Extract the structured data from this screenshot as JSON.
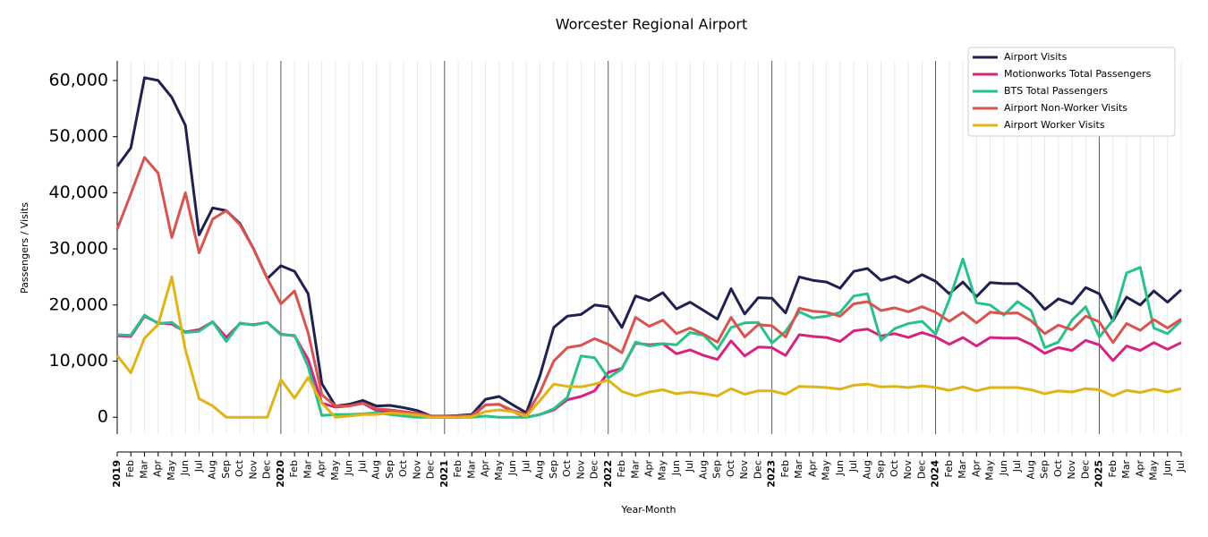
{
  "chart_data": {
    "type": "line",
    "title": "Worcester Regional Airport",
    "x_label": "Year-Month",
    "y_label": "Passengers / Visits",
    "categories": [
      "2019",
      "Feb",
      "Mar",
      "Apr",
      "May",
      "Jun",
      "Jul",
      "Aug",
      "Sep",
      "Oct",
      "Nov",
      "Dec",
      "2020",
      "Feb",
      "Mar",
      "Apr",
      "May",
      "Jun",
      "Jul",
      "Aug",
      "Sep",
      "Oct",
      "Nov",
      "Dec",
      "2021",
      "Feb",
      "Mar",
      "Apr",
      "May",
      "Jun",
      "Jul",
      "Aug",
      "Sep",
      "Oct",
      "Nov",
      "Dec",
      "2022",
      "Feb",
      "Mar",
      "Apr",
      "May",
      "Jun",
      "Jul",
      "Aug",
      "Sep",
      "Oct",
      "Nov",
      "Dec",
      "2023",
      "Feb",
      "Mar",
      "Apr",
      "May",
      "Jun",
      "Jul",
      "Aug",
      "Sep",
      "Oct",
      "Nov",
      "Dec",
      "2024",
      "Feb",
      "Mar",
      "Apr",
      "May",
      "Jun",
      "Jul",
      "Aug",
      "Sep",
      "Oct",
      "Nov",
      "Dec",
      "2025",
      "Feb",
      "Mar",
      "Apr",
      "May",
      "Jun",
      "Jul"
    ],
    "series": [
      {
        "name": "Airport Visits",
        "color": "#1f2151",
        "values": [
          44700,
          48000,
          60500,
          60000,
          57000,
          52000,
          32500,
          37300,
          36800,
          34500,
          30000,
          24700,
          27000,
          26000,
          22000,
          6000,
          2000,
          2300,
          3000,
          2000,
          2100,
          1700,
          1200,
          200,
          200,
          300,
          500,
          3200,
          3700,
          2200,
          800,
          7500,
          16000,
          18000,
          18300,
          20000,
          19700,
          16000,
          21600,
          20800,
          22200,
          19300,
          20500,
          19000,
          17500,
          22900,
          18400,
          21300,
          21200,
          18600,
          25000,
          24400,
          24100,
          23000,
          26000,
          26500,
          24400,
          25100,
          24000,
          25400,
          24200,
          22000,
          24100,
          21500,
          24000,
          23800,
          23800,
          22000,
          19200,
          21100,
          20200,
          23100,
          22000,
          17200,
          21400,
          20000,
          22500,
          20500,
          22700
        ]
      },
      {
        "name": "Motionworks Total Passengers",
        "color": "#d6237f",
        "values": [
          14500,
          14400,
          18000,
          16800,
          16600,
          15200,
          15600,
          17000,
          14200,
          16700,
          16500,
          16900,
          14800,
          14500,
          10300,
          2500,
          1800,
          2000,
          2500,
          1200,
          1000,
          600,
          300,
          0,
          0,
          0,
          100,
          2200,
          2300,
          1000,
          0,
          500,
          1300,
          3100,
          3700,
          4700,
          8000,
          8700,
          13200,
          12900,
          13100,
          11300,
          12000,
          11000,
          10300,
          13600,
          10900,
          12500,
          12400,
          11000,
          14700,
          14400,
          14200,
          13500,
          15400,
          15700,
          14500,
          14900,
          14200,
          15100,
          14300,
          13000,
          14200,
          12700,
          14200,
          14100,
          14100,
          13000,
          11400,
          12400,
          11900,
          13700,
          12900,
          10100,
          12700,
          11900,
          13300,
          12100,
          13300
        ]
      },
      {
        "name": "BTS Total Passengers",
        "color": "#27c28a",
        "values": [
          14700,
          14600,
          18200,
          16700,
          16900,
          15100,
          15300,
          17000,
          13500,
          16800,
          16400,
          16900,
          14700,
          14600,
          9000,
          300,
          500,
          500,
          600,
          800,
          500,
          200,
          0,
          0,
          0,
          0,
          0,
          200,
          0,
          0,
          0,
          500,
          1500,
          3500,
          10900,
          10600,
          7000,
          8600,
          13400,
          12700,
          13100,
          12900,
          15100,
          14600,
          12100,
          16000,
          16800,
          16900,
          13200,
          15300,
          18800,
          17700,
          18000,
          18700,
          21600,
          22000,
          13700,
          15800,
          16700,
          17100,
          14800,
          21000,
          28200,
          20400,
          20000,
          18200,
          20600,
          19000,
          12400,
          13400,
          17300,
          19700,
          14300,
          17300,
          25700,
          26700,
          15900,
          14900,
          17200
        ]
      },
      {
        "name": "Airport Non-Worker Visits",
        "color": "#d9534f",
        "values": [
          33500,
          39800,
          46300,
          43500,
          32000,
          40000,
          29300,
          35300,
          36800,
          34300,
          30000,
          24700,
          20200,
          22500,
          15000,
          4000,
          2000,
          2000,
          2500,
          1500,
          1300,
          1000,
          700,
          200,
          200,
          200,
          300,
          2200,
          2300,
          1200,
          500,
          4500,
          10000,
          12400,
          12800,
          14000,
          13000,
          11500,
          17800,
          16200,
          17300,
          14900,
          15900,
          14800,
          13400,
          17800,
          14300,
          16500,
          16300,
          14300,
          19400,
          18900,
          18700,
          18000,
          20200,
          20600,
          19000,
          19500,
          18800,
          19700,
          18700,
          17100,
          18700,
          16800,
          18700,
          18500,
          18600,
          17200,
          14900,
          16400,
          15600,
          18000,
          17000,
          13300,
          16700,
          15500,
          17400,
          15900,
          17500
        ]
      },
      {
        "name": "Airport Worker Visits",
        "color": "#e0b317",
        "values": [
          11000,
          7900,
          14100,
          16500,
          25000,
          12000,
          3300,
          2000,
          0,
          0,
          0,
          0,
          6700,
          3400,
          7100,
          2500,
          0,
          200,
          500,
          500,
          800,
          600,
          400,
          0,
          0,
          0,
          100,
          1000,
          1300,
          1000,
          200,
          3000,
          5900,
          5500,
          5400,
          5900,
          6600,
          4600,
          3800,
          4500,
          4900,
          4200,
          4500,
          4200,
          3800,
          5100,
          4100,
          4700,
          4700,
          4100,
          5500,
          5400,
          5300,
          5000,
          5700,
          5900,
          5400,
          5500,
          5300,
          5600,
          5300,
          4800,
          5400,
          4700,
          5300,
          5300,
          5300,
          4900,
          4200,
          4700,
          4500,
          5100,
          4900,
          3800,
          4800,
          4400,
          5000,
          4500,
          5100
        ]
      }
    ],
    "ylim": [
      -3000,
      63500
    ],
    "yticks": [
      0,
      {
        "value": 10000,
        "label": "10,000"
      },
      {
        "value": 20000,
        "label": "20,000"
      },
      {
        "value": 30000,
        "label": "30,000"
      },
      {
        "value": 40000,
        "label": "40,000"
      },
      {
        "value": 50000,
        "label": "50,000"
      },
      {
        "value": 60000,
        "label": "60,000"
      }
    ],
    "legend": "upper right",
    "grid": true
  }
}
